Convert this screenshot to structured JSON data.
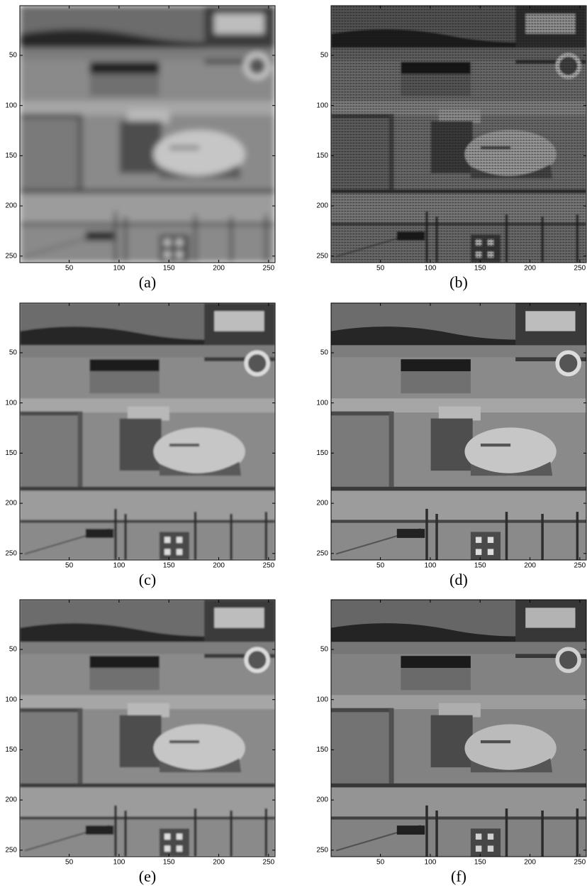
{
  "panels": [
    {
      "caption": "(a)",
      "xlim": [
        0.5,
        256.5
      ],
      "ylim": [
        0.5,
        256.5
      ],
      "xticks": [
        50,
        100,
        150,
        200,
        250
      ],
      "yticks": [
        50,
        100,
        150,
        200,
        250
      ]
    },
    {
      "caption": "(b)",
      "xlim": [
        0.5,
        256.5
      ],
      "ylim": [
        0.5,
        256.5
      ],
      "xticks": [
        50,
        100,
        150,
        200,
        250
      ],
      "yticks": [
        50,
        100,
        150,
        200,
        250
      ]
    },
    {
      "caption": "(c)",
      "xlim": [
        0.5,
        256.5
      ],
      "ylim": [
        0.5,
        256.5
      ],
      "xticks": [
        50,
        100,
        150,
        200,
        250
      ],
      "yticks": [
        50,
        100,
        150,
        200,
        250
      ]
    },
    {
      "caption": "(d)",
      "xlim": [
        0.5,
        256.5
      ],
      "ylim": [
        0.5,
        256.5
      ],
      "xticks": [
        50,
        100,
        150,
        200,
        250
      ],
      "yticks": [
        50,
        100,
        150,
        200,
        250
      ]
    },
    {
      "caption": "(e)",
      "xlim": [
        0.5,
        256.5
      ],
      "ylim": [
        0.5,
        256.5
      ],
      "xticks": [
        50,
        100,
        150,
        200,
        250
      ],
      "yticks": [
        50,
        100,
        150,
        200,
        250
      ]
    },
    {
      "caption": "(f)",
      "xlim": [
        0.5,
        256.5
      ],
      "ylim": [
        0.5,
        256.5
      ],
      "xticks": [
        50,
        100,
        150,
        200,
        250
      ],
      "yticks": [
        50,
        100,
        150,
        200,
        250
      ]
    }
  ]
}
